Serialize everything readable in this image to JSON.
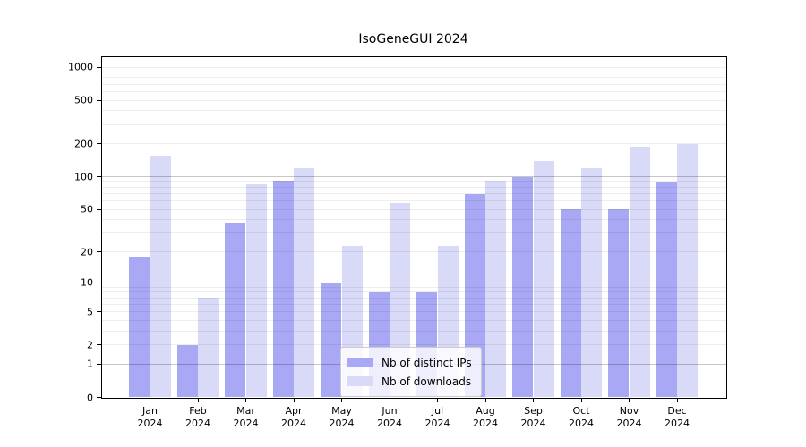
{
  "title": "IsoGeneGUI 2024",
  "chart_data": {
    "type": "bar",
    "title": "IsoGeneGUI 2024",
    "xlabel": "",
    "ylabel": "",
    "y_scale": "log1p",
    "ylim": [
      0,
      1230
    ],
    "y_ticks": [
      0,
      1,
      2,
      5,
      10,
      20,
      50,
      100,
      200,
      500,
      1000
    ],
    "major_gridlines": [
      1,
      10,
      100
    ],
    "grid": "on",
    "legend_position": "lower center",
    "categories": [
      "Jan 2024",
      "Feb 2024",
      "Mar 2024",
      "Apr 2024",
      "May 2024",
      "Jun 2024",
      "Jul 2024",
      "Aug 2024",
      "Sep 2024",
      "Oct 2024",
      "Nov 2024",
      "Dec 2024"
    ],
    "series": [
      {
        "name": "Nb of distinct IPs",
        "color": "#a8a8f4",
        "values": [
          18,
          2,
          38,
          90,
          10,
          8,
          8,
          70,
          100,
          50,
          50,
          88
        ]
      },
      {
        "name": "Nb of downloads",
        "color": "#d9d9f8",
        "values": [
          155,
          7,
          85,
          120,
          23,
          57,
          23,
          90,
          140,
          120,
          190,
          200
        ]
      }
    ]
  }
}
